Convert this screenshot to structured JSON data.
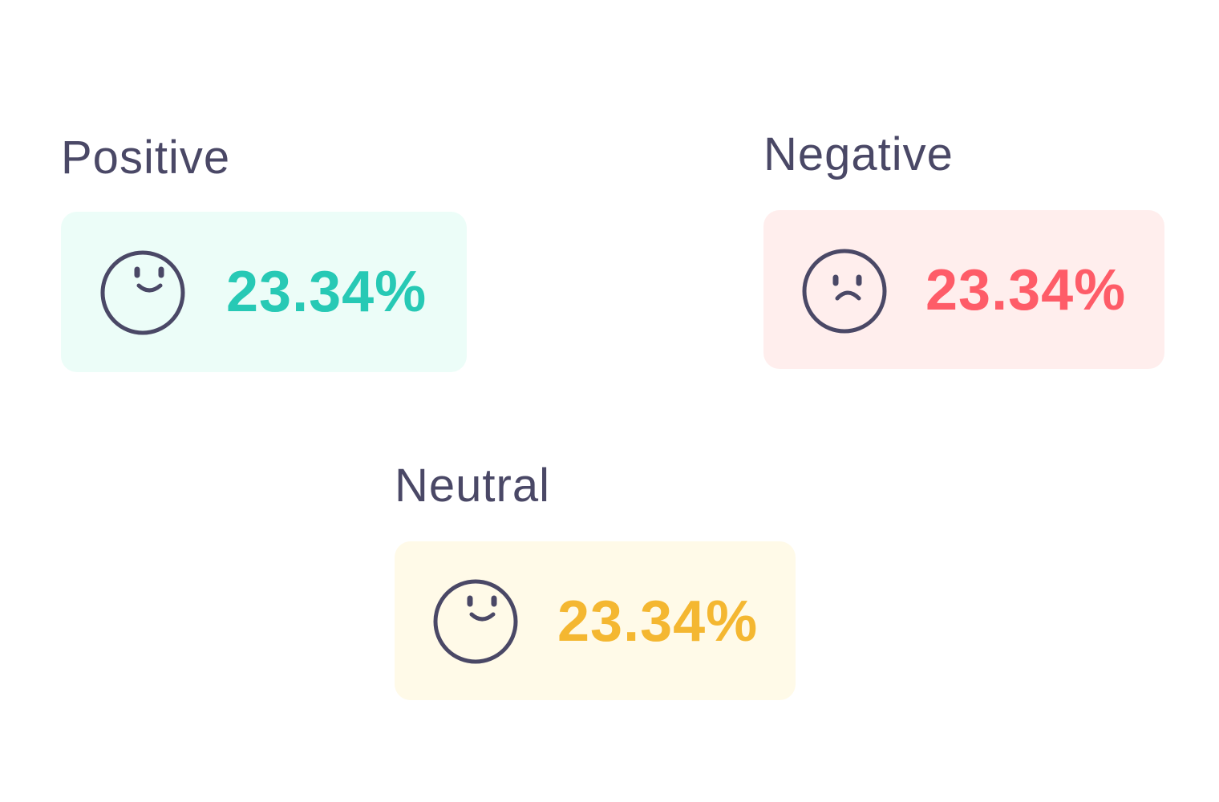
{
  "colors": {
    "label": "#4a4866",
    "icon_stroke": "#4a4866",
    "positive_accent": "#27c9b5",
    "positive_bg": "#ecfdf8",
    "negative_accent": "#fe5c68",
    "negative_bg": "#ffeeed",
    "neutral_accent": "#f4b731",
    "neutral_bg": "#fffae8"
  },
  "sentiments": {
    "positive": {
      "label": "Positive",
      "value": "23.34%",
      "icon": "smiley-face-icon"
    },
    "negative": {
      "label": "Negative",
      "value": "23.34%",
      "icon": "sad-face-icon"
    },
    "neutral": {
      "label": "Neutral",
      "value": "23.34%",
      "icon": "smiley-face-icon"
    }
  }
}
